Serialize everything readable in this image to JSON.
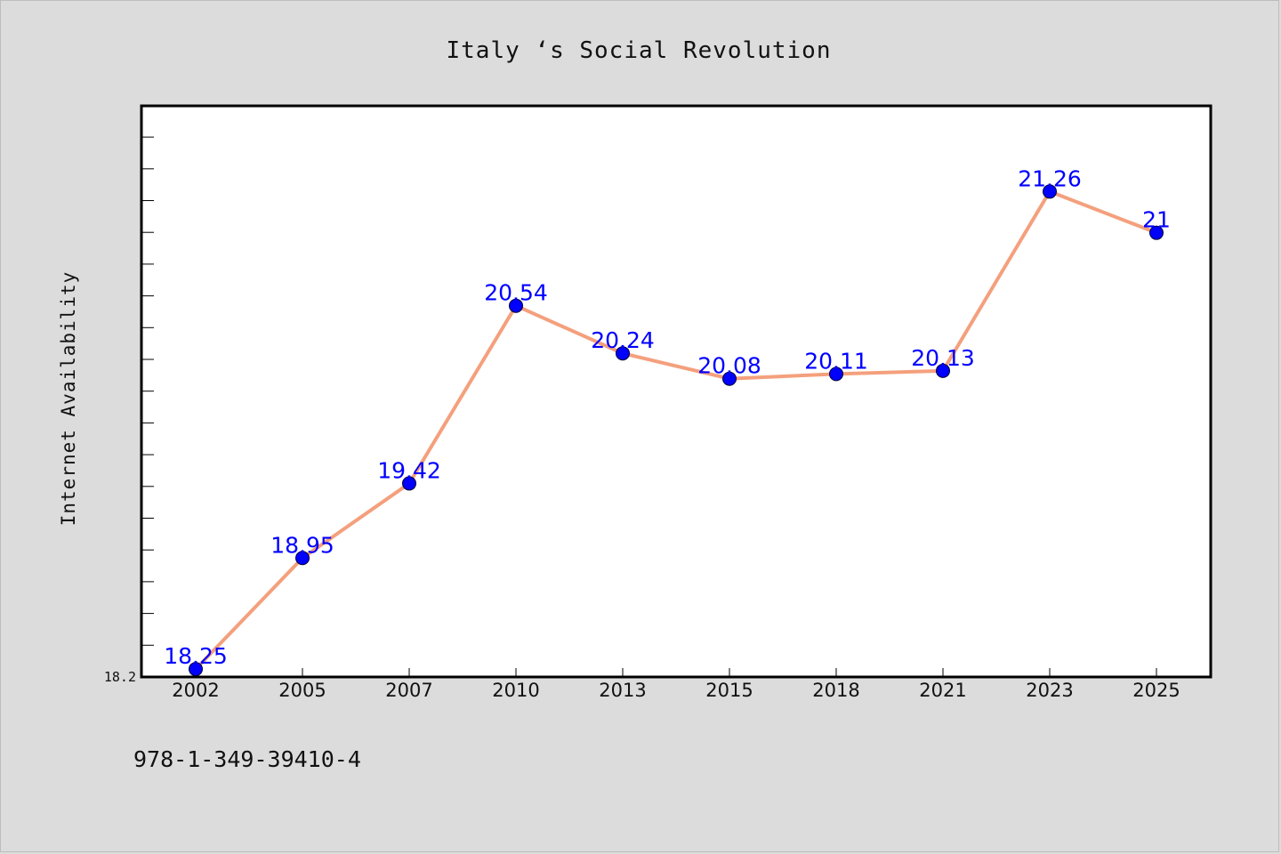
{
  "chart_data": {
    "type": "line",
    "title": "Italy ‘s Social Revolution",
    "xlabel": "",
    "ylabel": "Internet Availability",
    "categories": [
      "2002",
      "2005",
      "2007",
      "2010",
      "2013",
      "2015",
      "2018",
      "2021",
      "2023",
      "2025"
    ],
    "values": [
      18.25,
      18.95,
      19.42,
      20.54,
      20.24,
      20.08,
      20.11,
      20.13,
      21.26,
      21
    ],
    "data_labels": [
      "18.25",
      "18.95",
      "19.42",
      "20.54",
      "20.24",
      "20.08",
      "20.11",
      "20.13",
      "21.26",
      "21"
    ],
    "yticks": [
      "18.2"
    ],
    "ylim": [
      18.2,
      21.8
    ],
    "grid": false,
    "legend": "none",
    "colors": {
      "line": "#f4a07d",
      "marker": "#0000ff",
      "label": "#0000ff",
      "background": "#dcdcdc",
      "plot_background": "#ffffff"
    }
  },
  "footer_text": "978-1-349-39410-4"
}
